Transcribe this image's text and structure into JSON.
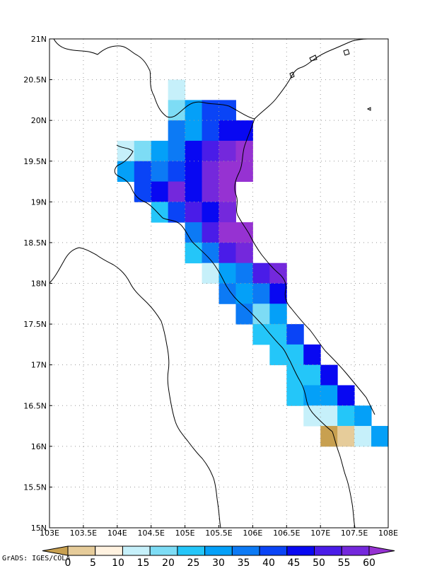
{
  "credit": "GrADS: IGES/COLA",
  "axes": {
    "x_ticks": [
      "103E",
      "103.5E",
      "104E",
      "104.5E",
      "105E",
      "105.5E",
      "106E",
      "106.5E",
      "107E",
      "107.5E",
      "108E"
    ],
    "y_ticks": [
      "15N",
      "15.5N",
      "16N",
      "16.5N",
      "17N",
      "17.5N",
      "18N",
      "18.5N",
      "19N",
      "19.5N",
      "20N",
      "20.5N",
      "21N"
    ],
    "lon_range": [
      103,
      108
    ],
    "lat_range": [
      15,
      21
    ],
    "grid": true
  },
  "colorbar": {
    "labels": [
      "0",
      "5",
      "10",
      "15",
      "20",
      "25",
      "30",
      "35",
      "40",
      "45",
      "50",
      "55",
      "60"
    ],
    "colors": [
      "#c8a050",
      "#e6cc9a",
      "#fff2e0",
      "#c6f0fa",
      "#7ddcf5",
      "#24c6f9",
      "#04a0f8",
      "#0c7af5",
      "#0a44f6",
      "#0808f2",
      "#4a1ce8",
      "#7428dc",
      "#9632d2"
    ]
  },
  "chart_data": {
    "type": "heatmap",
    "title": "",
    "cell_size_deg": 0.25,
    "palette": [
      "#c8a050",
      "#e6cc9a",
      "#fff2e0",
      "#c6f0fa",
      "#7ddcf5",
      "#24c6f9",
      "#04a0f8",
      "#0c7af5",
      "#0a44f6",
      "#0808f2",
      "#4a1ce8",
      "#7428dc",
      "#9632d2"
    ],
    "cells": [
      {
        "lon": 104.875,
        "lat": 20.375,
        "c": 3
      },
      {
        "lon": 104.875,
        "lat": 20.125,
        "c": 4
      },
      {
        "lon": 105.125,
        "lat": 20.125,
        "c": 6
      },
      {
        "lon": 105.375,
        "lat": 20.125,
        "c": 8
      },
      {
        "lon": 105.625,
        "lat": 20.125,
        "c": 8
      },
      {
        "lon": 104.875,
        "lat": 19.875,
        "c": 7
      },
      {
        "lon": 105.125,
        "lat": 19.875,
        "c": 6
      },
      {
        "lon": 105.375,
        "lat": 19.875,
        "c": 8
      },
      {
        "lon": 105.625,
        "lat": 19.875,
        "c": 9
      },
      {
        "lon": 105.875,
        "lat": 19.875,
        "c": 9
      },
      {
        "lon": 104.125,
        "lat": 19.625,
        "c": 3
      },
      {
        "lon": 104.375,
        "lat": 19.625,
        "c": 4
      },
      {
        "lon": 104.625,
        "lat": 19.625,
        "c": 6
      },
      {
        "lon": 104.875,
        "lat": 19.625,
        "c": 7
      },
      {
        "lon": 105.125,
        "lat": 19.625,
        "c": 9
      },
      {
        "lon": 105.375,
        "lat": 19.625,
        "c": 10
      },
      {
        "lon": 105.625,
        "lat": 19.625,
        "c": 11
      },
      {
        "lon": 105.875,
        "lat": 19.625,
        "c": 12
      },
      {
        "lon": 104.125,
        "lat": 19.375,
        "c": 6
      },
      {
        "lon": 104.375,
        "lat": 19.375,
        "c": 8
      },
      {
        "lon": 104.625,
        "lat": 19.375,
        "c": 7
      },
      {
        "lon": 104.875,
        "lat": 19.375,
        "c": 8
      },
      {
        "lon": 105.125,
        "lat": 19.375,
        "c": 9
      },
      {
        "lon": 105.375,
        "lat": 19.375,
        "c": 11
      },
      {
        "lon": 105.625,
        "lat": 19.375,
        "c": 12
      },
      {
        "lon": 105.875,
        "lat": 19.375,
        "c": 12
      },
      {
        "lon": 104.375,
        "lat": 19.125,
        "c": 8
      },
      {
        "lon": 104.625,
        "lat": 19.125,
        "c": 9
      },
      {
        "lon": 104.875,
        "lat": 19.125,
        "c": 11
      },
      {
        "lon": 105.125,
        "lat": 19.125,
        "c": 9
      },
      {
        "lon": 105.375,
        "lat": 19.125,
        "c": 11
      },
      {
        "lon": 105.625,
        "lat": 19.125,
        "c": 12
      },
      {
        "lon": 104.625,
        "lat": 18.875,
        "c": 5
      },
      {
        "lon": 104.875,
        "lat": 18.875,
        "c": 8
      },
      {
        "lon": 105.125,
        "lat": 18.875,
        "c": 10
      },
      {
        "lon": 105.375,
        "lat": 18.875,
        "c": 9
      },
      {
        "lon": 105.625,
        "lat": 18.875,
        "c": 11
      },
      {
        "lon": 105.125,
        "lat": 18.625,
        "c": 7
      },
      {
        "lon": 105.375,
        "lat": 18.625,
        "c": 10
      },
      {
        "lon": 105.625,
        "lat": 18.625,
        "c": 12
      },
      {
        "lon": 105.875,
        "lat": 18.625,
        "c": 12
      },
      {
        "lon": 105.125,
        "lat": 18.375,
        "c": 5
      },
      {
        "lon": 105.375,
        "lat": 18.375,
        "c": 7
      },
      {
        "lon": 105.625,
        "lat": 18.375,
        "c": 10
      },
      {
        "lon": 105.875,
        "lat": 18.375,
        "c": 11
      },
      {
        "lon": 105.375,
        "lat": 18.125,
        "c": 3
      },
      {
        "lon": 105.625,
        "lat": 18.125,
        "c": 6
      },
      {
        "lon": 105.875,
        "lat": 18.125,
        "c": 7
      },
      {
        "lon": 106.125,
        "lat": 18.125,
        "c": 10
      },
      {
        "lon": 106.375,
        "lat": 18.125,
        "c": 11
      },
      {
        "lon": 105.625,
        "lat": 17.875,
        "c": 7
      },
      {
        "lon": 105.875,
        "lat": 17.875,
        "c": 6
      },
      {
        "lon": 106.125,
        "lat": 17.875,
        "c": 7
      },
      {
        "lon": 106.375,
        "lat": 17.875,
        "c": 9
      },
      {
        "lon": 105.875,
        "lat": 17.625,
        "c": 7
      },
      {
        "lon": 106.125,
        "lat": 17.625,
        "c": 4
      },
      {
        "lon": 106.375,
        "lat": 17.625,
        "c": 6
      },
      {
        "lon": 106.125,
        "lat": 17.375,
        "c": 5
      },
      {
        "lon": 106.375,
        "lat": 17.375,
        "c": 5
      },
      {
        "lon": 106.625,
        "lat": 17.375,
        "c": 8
      },
      {
        "lon": 106.375,
        "lat": 17.125,
        "c": 5
      },
      {
        "lon": 106.625,
        "lat": 17.125,
        "c": 5
      },
      {
        "lon": 106.875,
        "lat": 17.125,
        "c": 9
      },
      {
        "lon": 106.625,
        "lat": 16.875,
        "c": 5
      },
      {
        "lon": 106.875,
        "lat": 16.875,
        "c": 5
      },
      {
        "lon": 107.125,
        "lat": 16.875,
        "c": 9
      },
      {
        "lon": 106.625,
        "lat": 16.625,
        "c": 5
      },
      {
        "lon": 106.875,
        "lat": 16.625,
        "c": 6
      },
      {
        "lon": 107.125,
        "lat": 16.625,
        "c": 6
      },
      {
        "lon": 107.375,
        "lat": 16.625,
        "c": 9
      },
      {
        "lon": 106.875,
        "lat": 16.375,
        "c": 3
      },
      {
        "lon": 107.125,
        "lat": 16.375,
        "c": 3
      },
      {
        "lon": 107.375,
        "lat": 16.375,
        "c": 5
      },
      {
        "lon": 107.625,
        "lat": 16.375,
        "c": 6
      },
      {
        "lon": 107.125,
        "lat": 16.125,
        "c": 0
      },
      {
        "lon": 107.375,
        "lat": 16.125,
        "c": 1
      },
      {
        "lon": 107.625,
        "lat": 16.125,
        "c": 3
      },
      {
        "lon": 107.875,
        "lat": 16.125,
        "c": 6
      }
    ]
  }
}
